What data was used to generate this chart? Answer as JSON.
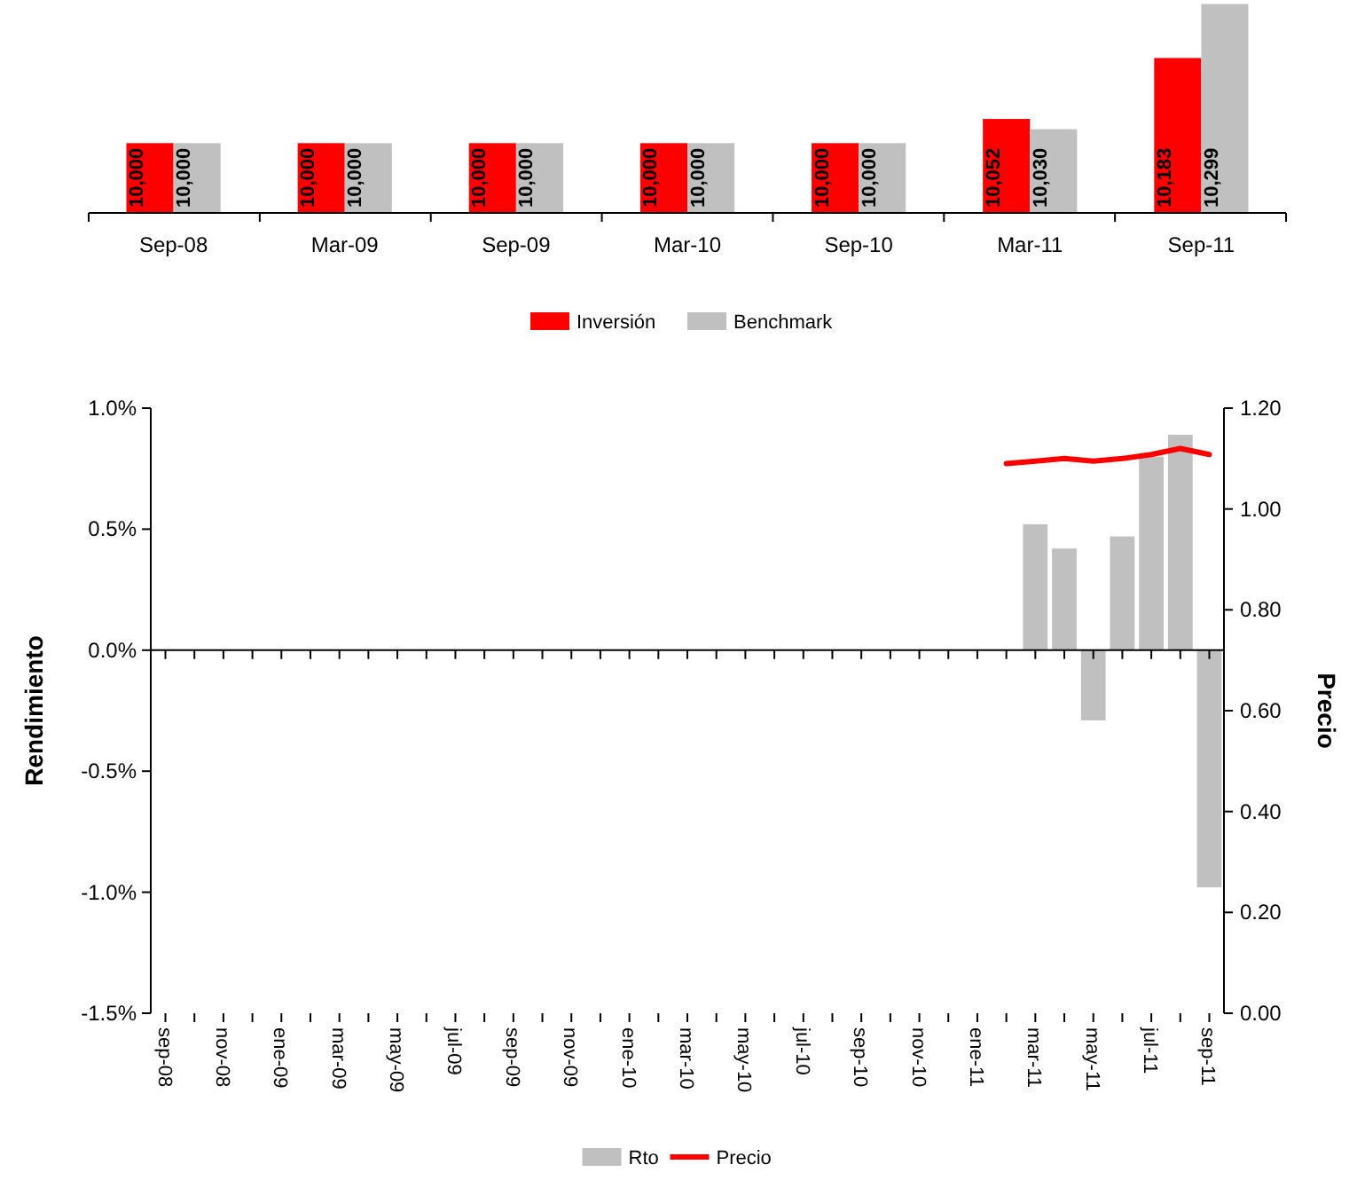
{
  "chart_data": [
    {
      "type": "bar",
      "categories": [
        "Sep-08",
        "Mar-09",
        "Sep-09",
        "Mar-10",
        "Sep-10",
        "Mar-11",
        "Sep-11"
      ],
      "ylim": [
        9850,
        10300
      ],
      "tick_labels": "x",
      "legend": "bottom",
      "series": [
        {
          "name": "Inversión",
          "color": "#ff0000",
          "values": [
            10000,
            10000,
            10000,
            10000,
            10000,
            10052,
            10183
          ],
          "value_labels": [
            "10,000",
            "10,000",
            "10,000",
            "10,000",
            "10,000",
            "10,052",
            "10,183"
          ]
        },
        {
          "name": "Benchmark",
          "color": "#c0c0c0",
          "values": [
            10000,
            10000,
            10000,
            10000,
            10000,
            10030,
            10299
          ],
          "value_labels": [
            "10,000",
            "10,000",
            "10,000",
            "10,000",
            "10,000",
            "10,030",
            "10,299"
          ]
        }
      ]
    },
    {
      "type": "bar",
      "ylabel": "Rendimiento",
      "y2label": "Precio",
      "legend": "bottom",
      "categories": [
        "sep-08",
        null,
        "nov-08",
        null,
        "ene-09",
        null,
        "mar-09",
        null,
        "may-09",
        null,
        "jul-09",
        null,
        "sep-09",
        null,
        "nov-09",
        null,
        "ene-10",
        null,
        "mar-10",
        null,
        "may-10",
        null,
        "jul-10",
        null,
        "sep-10",
        null,
        "nov-10",
        null,
        "ene-11",
        null,
        "mar-11",
        null,
        "may-11",
        null,
        "jul-11",
        null,
        "sep-11"
      ],
      "ylim": [
        -1.5,
        1.0
      ],
      "yticks": [
        {
          "value": -1.5,
          "label": "-1.5%"
        },
        {
          "value": -1.0,
          "label": "-1.0%"
        },
        {
          "value": -0.5,
          "label": "-0.5%"
        },
        {
          "value": 0,
          "label": "0.0%"
        },
        {
          "value": 0.5,
          "label": "0.5%"
        },
        {
          "value": 1.0,
          "label": "1.0%"
        }
      ],
      "y2lim": [
        0,
        1.2
      ],
      "y2ticks": [
        {
          "value": 0,
          "label": "0.00"
        },
        {
          "value": 0.2,
          "label": "0.20"
        },
        {
          "value": 0.4,
          "label": "0.40"
        },
        {
          "value": 0.6,
          "label": "0.60"
        },
        {
          "value": 0.8,
          "label": "0.80"
        },
        {
          "value": 1.0,
          "label": "1.00"
        },
        {
          "value": 1.2,
          "label": "1.20"
        }
      ],
      "series": [
        {
          "name": "Rto",
          "type": "bar",
          "axis": "y",
          "color": "#c0c0c0",
          "values": [
            null,
            null,
            null,
            null,
            null,
            null,
            null,
            null,
            null,
            null,
            null,
            null,
            null,
            null,
            null,
            null,
            null,
            null,
            null,
            null,
            null,
            null,
            null,
            null,
            null,
            null,
            null,
            null,
            null,
            null,
            0.52,
            0.42,
            -0.29,
            0.47,
            0.8,
            0.89,
            -0.98
          ]
        },
        {
          "name": "Precio",
          "type": "line",
          "axis": "y2",
          "color": "#ff0000",
          "values": [
            null,
            null,
            null,
            null,
            null,
            null,
            null,
            null,
            null,
            null,
            null,
            null,
            null,
            null,
            null,
            null,
            null,
            null,
            null,
            null,
            null,
            null,
            null,
            null,
            null,
            null,
            null,
            null,
            null,
            1.09,
            1.095,
            1.1,
            1.095,
            1.1,
            1.108,
            1.12,
            1.108
          ]
        }
      ]
    }
  ]
}
